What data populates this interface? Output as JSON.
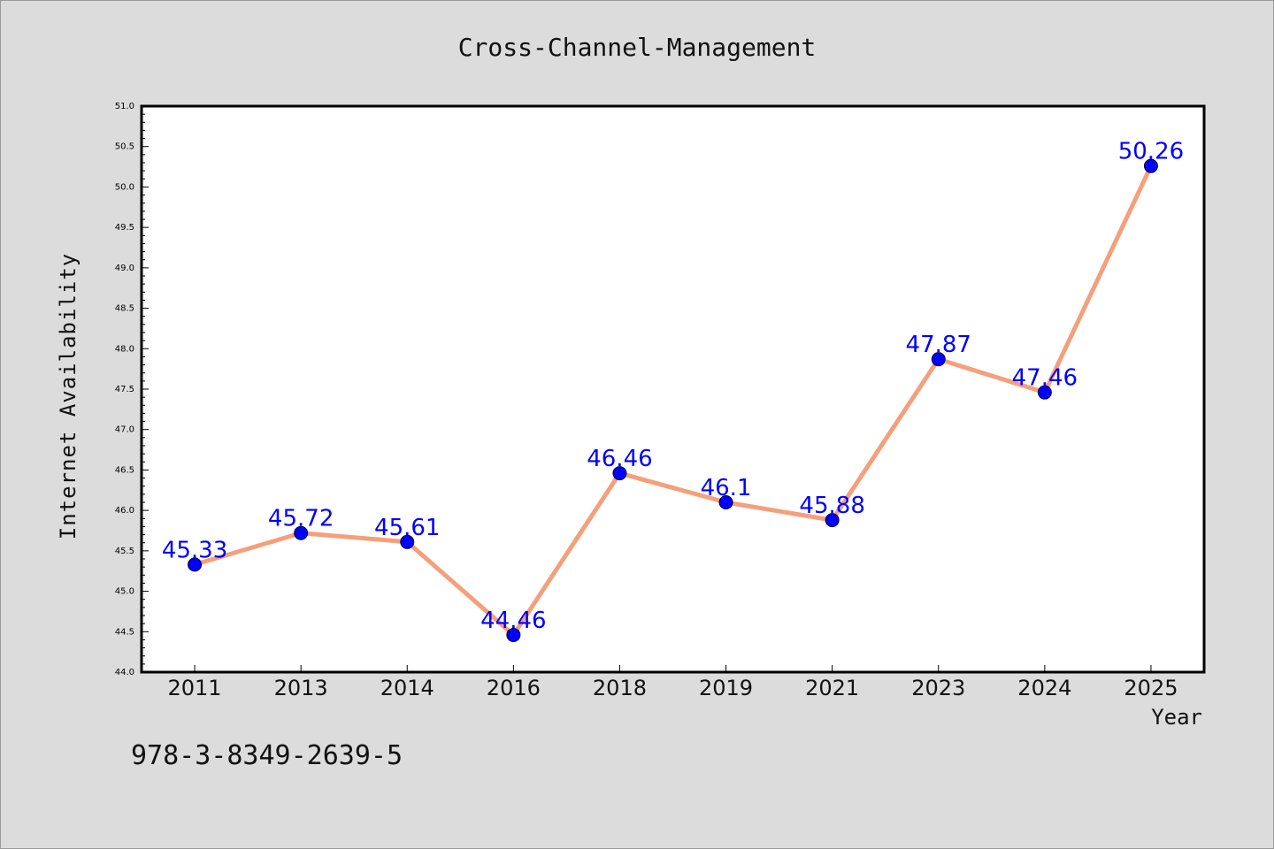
{
  "chart_data": {
    "type": "line",
    "title": "Cross-Channel-Management",
    "xlabel": "Year",
    "ylabel": "Internet Availability",
    "categories": [
      "2011",
      "2013",
      "2014",
      "2016",
      "2018",
      "2019",
      "2021",
      "2023",
      "2024",
      "2025"
    ],
    "series": [
      {
        "values": [
          45.33,
          45.72,
          45.61,
          44.46,
          46.46,
          46.1,
          45.88,
          47.87,
          47.46,
          50.26
        ],
        "data_labels": [
          "45.33",
          "45.72",
          "45.61",
          "44.46",
          "46.46",
          "46.1",
          "45.88",
          "47.87",
          "47.46",
          "50.26"
        ],
        "line_color": "#f4a07c",
        "marker_color": "#0000ff"
      }
    ],
    "ylim": [
      44.0,
      51.0
    ],
    "yticks": [
      "44.0",
      "44.5",
      "45.0",
      "45.5",
      "46.0",
      "46.5",
      "47.0",
      "47.5",
      "48.0",
      "48.5",
      "49.0",
      "49.5",
      "50.0",
      "50.5",
      "51.0"
    ],
    "grid": false,
    "legend": "none",
    "background_color": "#dcdcdc",
    "plot_background": "#ffffff",
    "label_color": "#0000ff"
  },
  "footer_code": "978-3-8349-2639-5"
}
